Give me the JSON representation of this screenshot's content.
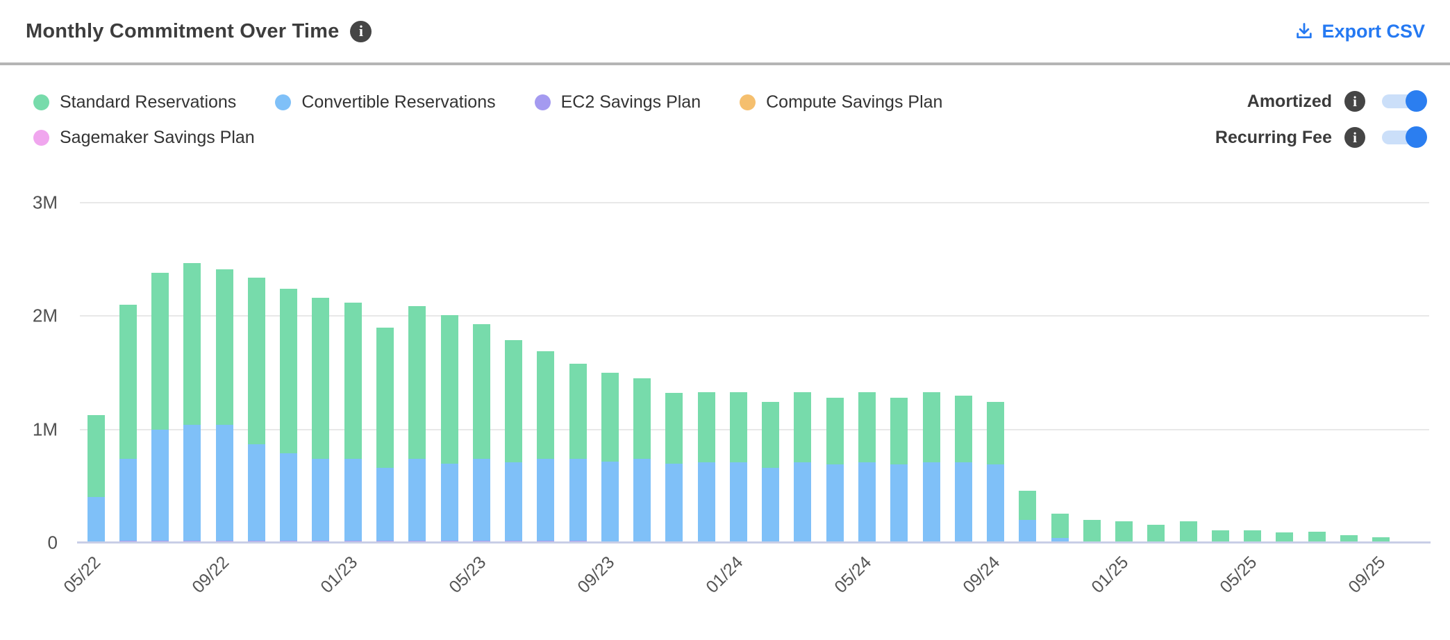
{
  "header": {
    "title": "Monthly Commitment Over Time",
    "info_icon": "i",
    "export_label": "Export CSV"
  },
  "legend": {
    "items": [
      {
        "label": "Standard Reservations",
        "color": "#77dbab"
      },
      {
        "label": "Convertible Reservations",
        "color": "#7fc0f8"
      },
      {
        "label": "EC2 Savings Plan",
        "color": "#a49af0"
      },
      {
        "label": "Compute Savings Plan",
        "color": "#f5bf6e"
      },
      {
        "label": "Sagemaker Savings Plan",
        "color": "#f0a6ee"
      }
    ]
  },
  "toggles": {
    "items": [
      {
        "label": "Amortized",
        "state": "on"
      },
      {
        "label": "Recurring Fee",
        "state": "on"
      }
    ]
  },
  "colors": {
    "accent_blue": "#2579f2",
    "toggle_on": "#2b7ef0",
    "toggle_track": "#cbdff9",
    "info_badge_bg": "#454545",
    "divider": "#b5b5b5",
    "gridline": "#e8e8e8",
    "baseline": "#c8cee6"
  },
  "chart_data": {
    "type": "bar",
    "stacked": true,
    "title": "Monthly Commitment Over Time",
    "xlabel": "",
    "ylabel": "",
    "values_unit": "millions",
    "ylim": [
      0,
      3
    ],
    "y_axis": {
      "ticks": [
        "0",
        "1M",
        "2M",
        "3M"
      ],
      "max_label": "3M",
      "grid": true
    },
    "tick_every": 4,
    "x": [
      "05/22",
      "06/22",
      "07/22",
      "08/22",
      "09/22",
      "10/22",
      "11/22",
      "12/22",
      "01/23",
      "02/23",
      "03/23",
      "04/23",
      "05/23",
      "06/23",
      "07/23",
      "08/23",
      "09/23",
      "10/23",
      "11/23",
      "12/23",
      "01/24",
      "02/24",
      "03/24",
      "04/24",
      "05/24",
      "06/24",
      "07/24",
      "08/24",
      "09/24",
      "10/24",
      "11/24",
      "12/24",
      "01/25",
      "02/25",
      "03/25",
      "04/25",
      "05/25",
      "06/25",
      "07/25",
      "08/25",
      "09/25",
      "10/25"
    ],
    "stack_order_bottom_to_top": [
      "EC2 Savings Plan",
      "Convertible Reservations",
      "Standard Reservations",
      "Compute Savings Plan",
      "Sagemaker Savings Plan"
    ],
    "series": [
      {
        "name": "Standard Reservations",
        "color": "#77dbab",
        "values": [
          0.72,
          1.36,
          1.38,
          1.43,
          1.37,
          1.47,
          1.45,
          1.42,
          1.38,
          1.24,
          1.35,
          1.31,
          1.19,
          1.08,
          0.95,
          0.84,
          0.785,
          0.71,
          0.62,
          0.62,
          0.62,
          0.58,
          0.62,
          0.59,
          0.62,
          0.59,
          0.62,
          0.59,
          0.55,
          0.26,
          0.22,
          0.2,
          0.19,
          0.16,
          0.19,
          0.11,
          0.11,
          0.09,
          0.1,
          0.065,
          0.05,
          0.015
        ]
      },
      {
        "name": "Convertible Reservations",
        "color": "#7fc0f8",
        "values": [
          0.4,
          0.72,
          0.98,
          1.02,
          1.02,
          0.85,
          0.77,
          0.72,
          0.72,
          0.64,
          0.72,
          0.68,
          0.72,
          0.69,
          0.72,
          0.72,
          0.7,
          0.74,
          0.7,
          0.71,
          0.71,
          0.66,
          0.71,
          0.69,
          0.71,
          0.69,
          0.71,
          0.71,
          0.69,
          0.2,
          0.04,
          0,
          0,
          0,
          0,
          0,
          0,
          0,
          0,
          0,
          0,
          0
        ]
      },
      {
        "name": "EC2 Savings Plan",
        "color": "#a49af0",
        "values": [
          0.005,
          0.02,
          0.02,
          0.02,
          0.02,
          0.02,
          0.02,
          0.02,
          0.02,
          0.02,
          0.02,
          0.02,
          0.02,
          0.02,
          0.02,
          0.02,
          0.015,
          0,
          0,
          0,
          0,
          0,
          0,
          0,
          0,
          0,
          0,
          0,
          0,
          0,
          0,
          0,
          0,
          0,
          0,
          0,
          0,
          0,
          0,
          0,
          0,
          0
        ]
      },
      {
        "name": "Compute Savings Plan",
        "color": "#f5bf6e",
        "values": [
          0,
          0,
          0,
          0,
          0,
          0,
          0,
          0,
          0,
          0,
          0,
          0,
          0,
          0,
          0,
          0,
          0,
          0,
          0,
          0,
          0,
          0,
          0,
          0,
          0,
          0,
          0,
          0,
          0,
          0,
          0,
          0,
          0,
          0,
          0,
          0,
          0,
          0,
          0,
          0,
          0,
          0
        ]
      },
      {
        "name": "Sagemaker Savings Plan",
        "color": "#f0a6ee",
        "values": [
          0,
          0,
          0,
          0,
          0,
          0,
          0,
          0,
          0,
          0,
          0,
          0,
          0,
          0,
          0,
          0,
          0,
          0,
          0,
          0,
          0,
          0,
          0,
          0,
          0,
          0,
          0,
          0,
          0,
          0,
          0,
          0,
          0,
          0,
          0,
          0,
          0,
          0,
          0,
          0,
          0,
          0
        ]
      }
    ]
  }
}
